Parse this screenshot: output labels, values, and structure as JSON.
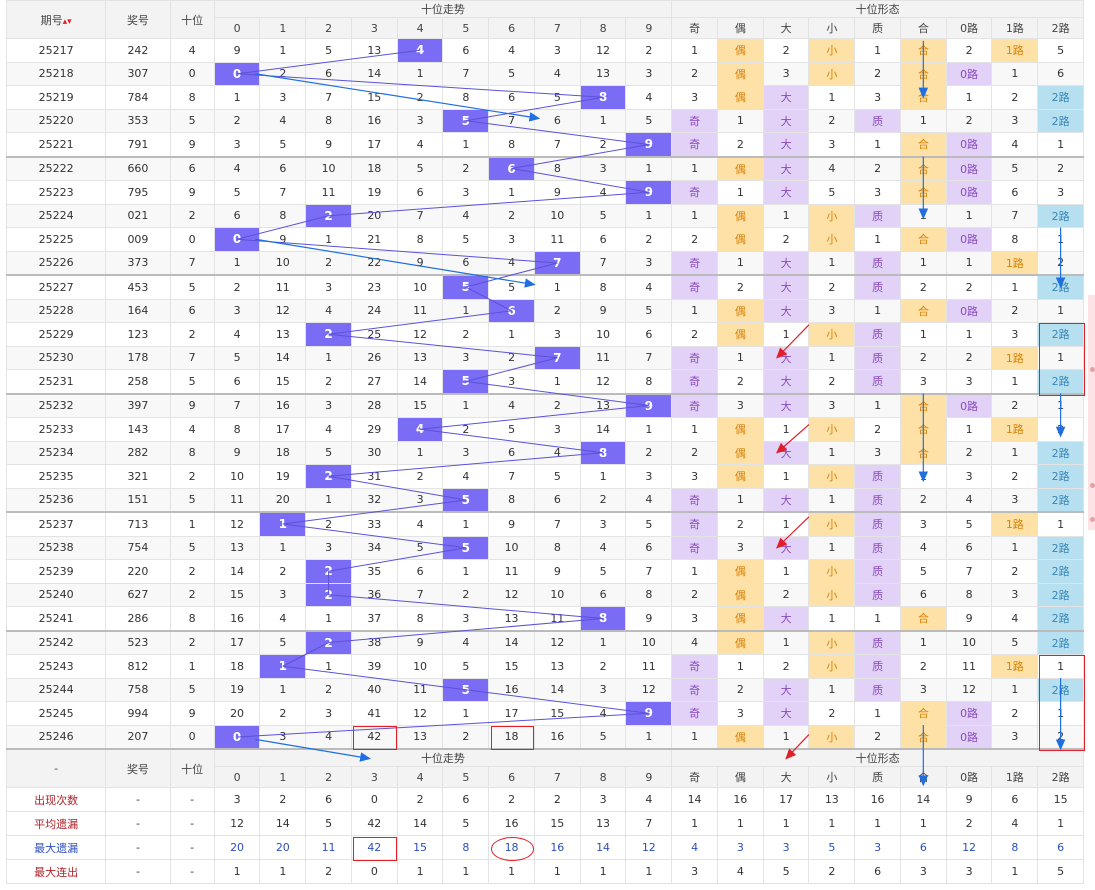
{
  "header": {
    "issue": "期号",
    "sort_icon": "sort-arrow-icon",
    "prize": "奖号",
    "tens": "十位",
    "trend": "十位走势",
    "shape": "十位形态",
    "digits": [
      "0",
      "1",
      "2",
      "3",
      "4",
      "5",
      "6",
      "7",
      "8",
      "9"
    ],
    "shape_cols": [
      "奇",
      "偶",
      "大",
      "小",
      "质",
      "合",
      "0路",
      "1路",
      "2路"
    ]
  },
  "rows": [
    {
      "issue": "25217",
      "prize": "242",
      "tens": "4",
      "cells": [
        "9",
        "1",
        "5",
        "13",
        "4",
        "6",
        "4",
        "3",
        "12",
        "2"
      ],
      "shape": [
        "1",
        "偶",
        "2",
        "小",
        "1",
        "合",
        "2",
        "1路",
        "5"
      ]
    },
    {
      "issue": "25218",
      "prize": "307",
      "tens": "0",
      "cells": [
        "0",
        "2",
        "6",
        "14",
        "1",
        "7",
        "5",
        "4",
        "13",
        "3"
      ],
      "shape": [
        "2",
        "偶",
        "3",
        "小",
        "2",
        "合",
        "0路",
        "1",
        "6"
      ]
    },
    {
      "issue": "25219",
      "prize": "784",
      "tens": "8",
      "cells": [
        "1",
        "3",
        "7",
        "15",
        "2",
        "8",
        "6",
        "5",
        "8",
        "4"
      ],
      "shape": [
        "3",
        "偶",
        "大",
        "1",
        "3",
        "合",
        "1",
        "2",
        "2路"
      ]
    },
    {
      "issue": "25220",
      "prize": "353",
      "tens": "5",
      "cells": [
        "2",
        "4",
        "8",
        "16",
        "3",
        "5",
        "7",
        "6",
        "1",
        "5"
      ],
      "shape": [
        "奇",
        "1",
        "大",
        "2",
        "质",
        "1",
        "2",
        "3",
        "2路"
      ]
    },
    {
      "issue": "25221",
      "prize": "791",
      "tens": "9",
      "cells": [
        "3",
        "5",
        "9",
        "17",
        "4",
        "1",
        "8",
        "7",
        "2",
        "9"
      ],
      "shape": [
        "奇",
        "2",
        "大",
        "3",
        "1",
        "合",
        "0路",
        "4",
        "1"
      ]
    },
    {
      "issue": "25222",
      "prize": "660",
      "tens": "6",
      "cells": [
        "4",
        "6",
        "10",
        "18",
        "5",
        "2",
        "6",
        "8",
        "3",
        "1"
      ],
      "shape": [
        "1",
        "偶",
        "大",
        "4",
        "2",
        "合",
        "0路",
        "5",
        "2"
      ]
    },
    {
      "issue": "25223",
      "prize": "795",
      "tens": "9",
      "cells": [
        "5",
        "7",
        "11",
        "19",
        "6",
        "3",
        "1",
        "9",
        "4",
        "9"
      ],
      "shape": [
        "奇",
        "1",
        "大",
        "5",
        "3",
        "合",
        "0路",
        "6",
        "3"
      ]
    },
    {
      "issue": "25224",
      "prize": "021",
      "tens": "2",
      "cells": [
        "6",
        "8",
        "2",
        "20",
        "7",
        "4",
        "2",
        "10",
        "5",
        "1"
      ],
      "shape": [
        "1",
        "偶",
        "1",
        "小",
        "质",
        "1",
        "1",
        "7",
        "2路"
      ]
    },
    {
      "issue": "25225",
      "prize": "009",
      "tens": "0",
      "cells": [
        "0",
        "9",
        "1",
        "21",
        "8",
        "5",
        "3",
        "11",
        "6",
        "2"
      ],
      "shape": [
        "2",
        "偶",
        "2",
        "小",
        "1",
        "合",
        "0路",
        "8",
        "1"
      ]
    },
    {
      "issue": "25226",
      "prize": "373",
      "tens": "7",
      "cells": [
        "1",
        "10",
        "2",
        "22",
        "9",
        "6",
        "4",
        "7",
        "7",
        "3"
      ],
      "shape": [
        "奇",
        "1",
        "大",
        "1",
        "质",
        "1",
        "1",
        "1路",
        "2"
      ]
    },
    {
      "issue": "25227",
      "prize": "453",
      "tens": "5",
      "cells": [
        "2",
        "11",
        "3",
        "23",
        "10",
        "5",
        "5",
        "1",
        "8",
        "4"
      ],
      "shape": [
        "奇",
        "2",
        "大",
        "2",
        "质",
        "2",
        "2",
        "1",
        "2路"
      ]
    },
    {
      "issue": "25228",
      "prize": "164",
      "tens": "6",
      "cells": [
        "3",
        "12",
        "4",
        "24",
        "11",
        "1",
        "6",
        "2",
        "9",
        "5"
      ],
      "shape": [
        "1",
        "偶",
        "大",
        "3",
        "1",
        "合",
        "0路",
        "2",
        "1"
      ]
    },
    {
      "issue": "25229",
      "prize": "123",
      "tens": "2",
      "cells": [
        "4",
        "13",
        "2",
        "25",
        "12",
        "2",
        "1",
        "3",
        "10",
        "6"
      ],
      "shape": [
        "2",
        "偶",
        "1",
        "小",
        "质",
        "1",
        "1",
        "3",
        "2路"
      ]
    },
    {
      "issue": "25230",
      "prize": "178",
      "tens": "7",
      "cells": [
        "5",
        "14",
        "1",
        "26",
        "13",
        "3",
        "2",
        "7",
        "11",
        "7"
      ],
      "shape": [
        "奇",
        "1",
        "大",
        "1",
        "质",
        "2",
        "2",
        "1路",
        "1"
      ]
    },
    {
      "issue": "25231",
      "prize": "258",
      "tens": "5",
      "cells": [
        "6",
        "15",
        "2",
        "27",
        "14",
        "5",
        "3",
        "1",
        "12",
        "8"
      ],
      "shape": [
        "奇",
        "2",
        "大",
        "2",
        "质",
        "3",
        "3",
        "1",
        "2路"
      ]
    },
    {
      "issue": "25232",
      "prize": "397",
      "tens": "9",
      "cells": [
        "7",
        "16",
        "3",
        "28",
        "15",
        "1",
        "4",
        "2",
        "13",
        "9"
      ],
      "shape": [
        "奇",
        "3",
        "大",
        "3",
        "1",
        "合",
        "0路",
        "2",
        "1"
      ]
    },
    {
      "issue": "25233",
      "prize": "143",
      "tens": "4",
      "cells": [
        "8",
        "17",
        "4",
        "29",
        "4",
        "2",
        "5",
        "3",
        "14",
        "1"
      ],
      "shape": [
        "1",
        "偶",
        "1",
        "小",
        "2",
        "合",
        "1",
        "1路",
        "2"
      ]
    },
    {
      "issue": "25234",
      "prize": "282",
      "tens": "8",
      "cells": [
        "9",
        "18",
        "5",
        "30",
        "1",
        "3",
        "6",
        "4",
        "8",
        "2"
      ],
      "shape": [
        "2",
        "偶",
        "大",
        "1",
        "3",
        "合",
        "2",
        "1",
        "2路"
      ]
    },
    {
      "issue": "25235",
      "prize": "321",
      "tens": "2",
      "cells": [
        "10",
        "19",
        "2",
        "31",
        "2",
        "4",
        "7",
        "5",
        "1",
        "3"
      ],
      "shape": [
        "3",
        "偶",
        "1",
        "小",
        "质",
        "1",
        "3",
        "2",
        "2路"
      ]
    },
    {
      "issue": "25236",
      "prize": "151",
      "tens": "5",
      "cells": [
        "11",
        "20",
        "1",
        "32",
        "3",
        "5",
        "8",
        "6",
        "2",
        "4"
      ],
      "shape": [
        "奇",
        "1",
        "大",
        "1",
        "质",
        "2",
        "4",
        "3",
        "2路"
      ]
    },
    {
      "issue": "25237",
      "prize": "713",
      "tens": "1",
      "cells": [
        "12",
        "1",
        "2",
        "33",
        "4",
        "1",
        "9",
        "7",
        "3",
        "5"
      ],
      "shape": [
        "奇",
        "2",
        "1",
        "小",
        "质",
        "3",
        "5",
        "1路",
        "1"
      ]
    },
    {
      "issue": "25238",
      "prize": "754",
      "tens": "5",
      "cells": [
        "13",
        "1",
        "3",
        "34",
        "5",
        "5",
        "10",
        "8",
        "4",
        "6"
      ],
      "shape": [
        "奇",
        "3",
        "大",
        "1",
        "质",
        "4",
        "6",
        "1",
        "2路"
      ]
    },
    {
      "issue": "25239",
      "prize": "220",
      "tens": "2",
      "cells": [
        "14",
        "2",
        "2",
        "35",
        "6",
        "1",
        "11",
        "9",
        "5",
        "7"
      ],
      "shape": [
        "1",
        "偶",
        "1",
        "小",
        "质",
        "5",
        "7",
        "2",
        "2路"
      ]
    },
    {
      "issue": "25240",
      "prize": "627",
      "tens": "2",
      "cells": [
        "15",
        "3",
        "2",
        "36",
        "7",
        "2",
        "12",
        "10",
        "6",
        "8"
      ],
      "shape": [
        "2",
        "偶",
        "2",
        "小",
        "质",
        "6",
        "8",
        "3",
        "2路"
      ]
    },
    {
      "issue": "25241",
      "prize": "286",
      "tens": "8",
      "cells": [
        "16",
        "4",
        "1",
        "37",
        "8",
        "3",
        "13",
        "11",
        "8",
        "9"
      ],
      "shape": [
        "3",
        "偶",
        "大",
        "1",
        "1",
        "合",
        "9",
        "4",
        "2路"
      ]
    },
    {
      "issue": "25242",
      "prize": "523",
      "tens": "2",
      "cells": [
        "17",
        "5",
        "2",
        "38",
        "9",
        "4",
        "14",
        "12",
        "1",
        "10"
      ],
      "shape": [
        "4",
        "偶",
        "1",
        "小",
        "质",
        "1",
        "10",
        "5",
        "2路"
      ]
    },
    {
      "issue": "25243",
      "prize": "812",
      "tens": "1",
      "cells": [
        "18",
        "1",
        "1",
        "39",
        "10",
        "5",
        "15",
        "13",
        "2",
        "11"
      ],
      "shape": [
        "奇",
        "1",
        "2",
        "小",
        "质",
        "2",
        "11",
        "1路",
        "1"
      ]
    },
    {
      "issue": "25244",
      "prize": "758",
      "tens": "5",
      "cells": [
        "19",
        "1",
        "2",
        "40",
        "11",
        "5",
        "16",
        "14",
        "3",
        "12"
      ],
      "shape": [
        "奇",
        "2",
        "大",
        "1",
        "质",
        "3",
        "12",
        "1",
        "2路"
      ]
    },
    {
      "issue": "25245",
      "prize": "994",
      "tens": "9",
      "cells": [
        "20",
        "2",
        "3",
        "41",
        "12",
        "1",
        "17",
        "15",
        "4",
        "9"
      ],
      "shape": [
        "奇",
        "3",
        "大",
        "2",
        "1",
        "合",
        "0路",
        "2",
        "1"
      ]
    },
    {
      "issue": "25246",
      "prize": "207",
      "tens": "0",
      "cells": [
        "0",
        "3",
        "4",
        "42",
        "13",
        "2",
        "18",
        "16",
        "5",
        "1"
      ],
      "shape": [
        "1",
        "偶",
        "1",
        "小",
        "2",
        "合",
        "0路",
        "3",
        "2"
      ]
    }
  ],
  "stats": [
    {
      "label": "出现次数",
      "a": "-",
      "b": "-",
      "vals": [
        "3",
        "2",
        "6",
        "0",
        "2",
        "6",
        "2",
        "2",
        "3",
        "4",
        "14",
        "16",
        "17",
        "13",
        "16",
        "14",
        "9",
        "6",
        "15"
      ]
    },
    {
      "label": "平均遗漏",
      "a": "-",
      "b": "-",
      "vals": [
        "12",
        "14",
        "5",
        "42",
        "14",
        "5",
        "16",
        "15",
        "13",
        "7",
        "1",
        "1",
        "1",
        "1",
        "1",
        "1",
        "2",
        "4",
        "1"
      ]
    },
    {
      "label": "最大遗漏",
      "a": "-",
      "b": "-",
      "vals": [
        "20",
        "20",
        "11",
        "42",
        "15",
        "8",
        "18",
        "16",
        "14",
        "12",
        "4",
        "3",
        "3",
        "5",
        "3",
        "6",
        "12",
        "8",
        "6"
      ]
    },
    {
      "label": "最大连出",
      "a": "-",
      "b": "-",
      "vals": [
        "1",
        "1",
        "2",
        "0",
        "1",
        "1",
        "1",
        "1",
        "1",
        "1",
        "3",
        "4",
        "5",
        "2",
        "6",
        "3",
        "3",
        "1",
        "5"
      ]
    }
  ],
  "footer_header": {
    "dash": "-",
    "prize": "奖号",
    "tens": "十位",
    "trend": "十位走势",
    "shape": "十位形态"
  }
}
